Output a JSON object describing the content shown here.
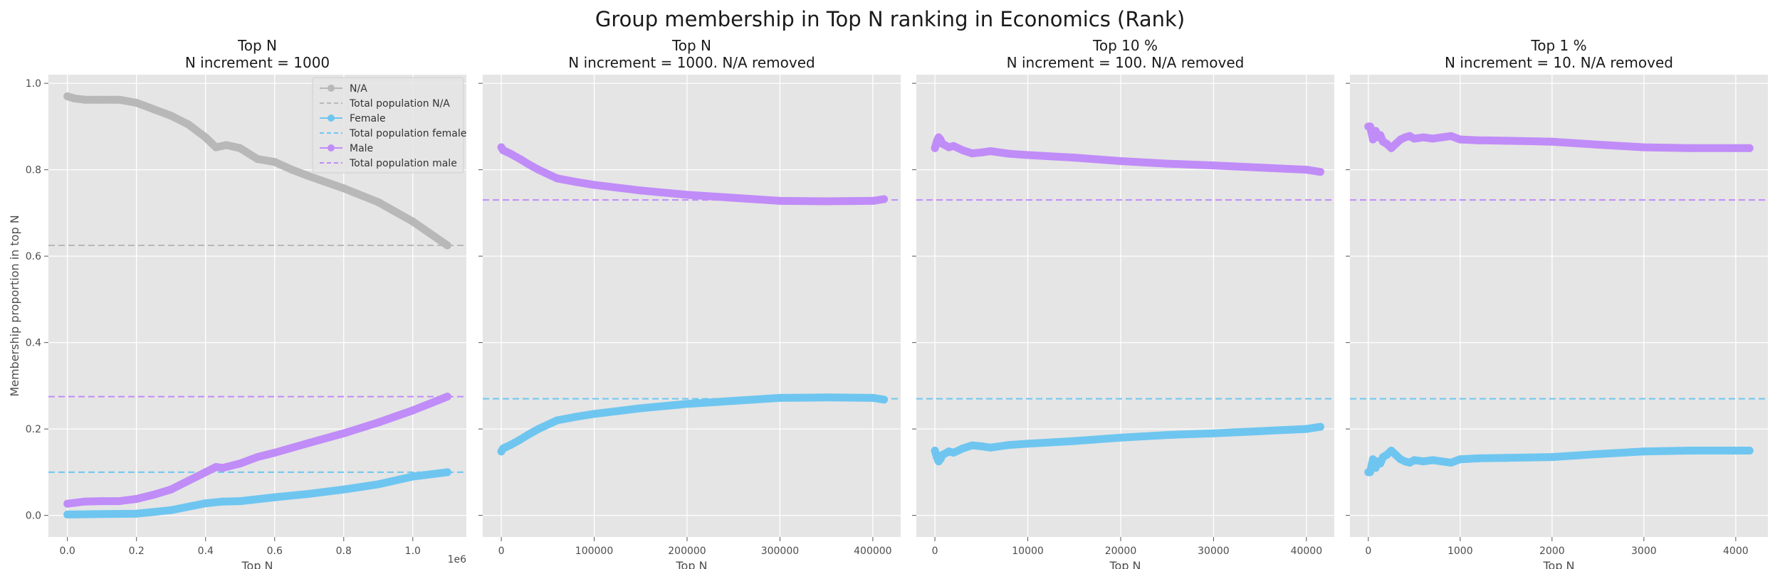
{
  "figure": {
    "title": "Group membership in Top N ranking in Economics (Rank)"
  },
  "colors": {
    "panel_bg": "#e5e5e5",
    "grid": "#ffffff",
    "na": "#b8b8b8",
    "female": "#6ec6f0",
    "male": "#c08cf8"
  },
  "chart_data": [
    {
      "type": "line",
      "title": "Top N",
      "subtitle": "N increment = 1000",
      "xlabel": "Top N",
      "ylabel": "Membership proportion in top N",
      "x_offset_label": "1e6",
      "xlim": [
        -0.055,
        1.155
      ],
      "ylim": [
        -0.05,
        1.02
      ],
      "xticks": [
        0,
        0.2,
        0.4,
        0.6,
        0.8,
        1.0
      ],
      "xtick_labels": [
        "0.0",
        "0.2",
        "0.4",
        "0.6",
        "0.8",
        "1.0"
      ],
      "yticks": [
        0,
        0.2,
        0.4,
        0.6,
        0.8,
        1.0
      ],
      "ytick_labels": [
        "0.0",
        "0.2",
        "0.4",
        "0.6",
        "0.8",
        "1.0"
      ],
      "grid": true,
      "legend": {
        "position": "top-right",
        "entries": [
          {
            "label": "N/A",
            "series": "na",
            "style": "marker-line"
          },
          {
            "label": "Total population N/A",
            "series": "na",
            "style": "dashed"
          },
          {
            "label": "Female",
            "series": "female",
            "style": "marker-line"
          },
          {
            "label": "Total population female",
            "series": "female",
            "style": "dashed"
          },
          {
            "label": "Male",
            "series": "male",
            "style": "marker-line"
          },
          {
            "label": "Total population male",
            "series": "male",
            "style": "dashed"
          }
        ]
      },
      "series": [
        {
          "name": "N/A",
          "group": "na",
          "x": [
            0.0,
            0.02,
            0.05,
            0.1,
            0.15,
            0.2,
            0.25,
            0.3,
            0.35,
            0.4,
            0.43,
            0.46,
            0.5,
            0.55,
            0.6,
            0.65,
            0.7,
            0.8,
            0.9,
            1.0,
            1.1
          ],
          "y": [
            0.97,
            0.965,
            0.962,
            0.962,
            0.962,
            0.955,
            0.94,
            0.925,
            0.905,
            0.875,
            0.852,
            0.857,
            0.85,
            0.825,
            0.818,
            0.8,
            0.785,
            0.757,
            0.725,
            0.68,
            0.625
          ]
        },
        {
          "name": "Female",
          "group": "female",
          "x": [
            0.0,
            0.1,
            0.2,
            0.3,
            0.4,
            0.45,
            0.5,
            0.6,
            0.7,
            0.8,
            0.9,
            1.0,
            1.1
          ],
          "y": [
            0.002,
            0.003,
            0.004,
            0.012,
            0.028,
            0.032,
            0.033,
            0.042,
            0.05,
            0.06,
            0.072,
            0.09,
            0.1
          ]
        },
        {
          "name": "Male",
          "group": "male",
          "x": [
            0.0,
            0.05,
            0.1,
            0.15,
            0.2,
            0.25,
            0.3,
            0.35,
            0.4,
            0.43,
            0.45,
            0.5,
            0.55,
            0.6,
            0.7,
            0.8,
            0.9,
            1.0,
            1.1
          ],
          "y": [
            0.027,
            0.032,
            0.033,
            0.033,
            0.038,
            0.048,
            0.06,
            0.08,
            0.1,
            0.112,
            0.11,
            0.12,
            0.135,
            0.145,
            0.168,
            0.19,
            0.215,
            0.243,
            0.275
          ]
        }
      ],
      "reference_lines": [
        {
          "name": "Total population N/A",
          "group": "na",
          "y": 0.625
        },
        {
          "name": "Total population female",
          "group": "female",
          "y": 0.1
        },
        {
          "name": "Total population male",
          "group": "male",
          "y": 0.275
        }
      ]
    },
    {
      "type": "line",
      "title": "Top N",
      "subtitle": "N increment = 1000. N/A removed",
      "xlabel": "Top N",
      "xlim": [
        -20000,
        430000
      ],
      "ylim": [
        -0.05,
        1.02
      ],
      "xticks": [
        0,
        100000,
        200000,
        300000,
        400000
      ],
      "xtick_labels": [
        "0",
        "100000",
        "200000",
        "300000",
        "400000"
      ],
      "yticks": [
        0,
        0.2,
        0.4,
        0.6,
        0.8,
        1.0
      ],
      "grid": true,
      "series": [
        {
          "name": "Female",
          "group": "female",
          "x": [
            0,
            2000,
            5000,
            10000,
            20000,
            30000,
            40000,
            60000,
            80000,
            100000,
            150000,
            200000,
            250000,
            300000,
            350000,
            400000,
            412000
          ],
          "y": [
            0.148,
            0.155,
            0.158,
            0.163,
            0.175,
            0.188,
            0.2,
            0.22,
            0.228,
            0.235,
            0.248,
            0.258,
            0.265,
            0.272,
            0.273,
            0.272,
            0.268
          ]
        },
        {
          "name": "Male",
          "group": "male",
          "x": [
            0,
            2000,
            5000,
            10000,
            20000,
            30000,
            40000,
            60000,
            80000,
            100000,
            150000,
            200000,
            250000,
            300000,
            350000,
            400000,
            412000
          ],
          "y": [
            0.852,
            0.845,
            0.842,
            0.837,
            0.825,
            0.812,
            0.8,
            0.78,
            0.772,
            0.765,
            0.752,
            0.742,
            0.735,
            0.728,
            0.727,
            0.728,
            0.732
          ]
        }
      ],
      "reference_lines": [
        {
          "name": "Total population female",
          "group": "female",
          "y": 0.27
        },
        {
          "name": "Total population male",
          "group": "male",
          "y": 0.73
        }
      ]
    },
    {
      "type": "line",
      "title": "Top 10 %",
      "subtitle": "N increment = 100. N/A removed",
      "xlabel": "Top N",
      "xlim": [
        -2000,
        43000
      ],
      "ylim": [
        -0.05,
        1.02
      ],
      "xticks": [
        0,
        10000,
        20000,
        30000,
        40000
      ],
      "xtick_labels": [
        "0",
        "10000",
        "20000",
        "30000",
        "40000"
      ],
      "yticks": [
        0,
        0.2,
        0.4,
        0.6,
        0.8,
        1.0
      ],
      "grid": true,
      "series": [
        {
          "name": "Female",
          "group": "female",
          "x": [
            0,
            200,
            400,
            600,
            800,
            1000,
            1500,
            2000,
            3000,
            4000,
            5000,
            6000,
            8000,
            10000,
            15000,
            20000,
            25000,
            30000,
            35000,
            40000,
            41500
          ],
          "y": [
            0.15,
            0.135,
            0.125,
            0.13,
            0.14,
            0.142,
            0.148,
            0.145,
            0.155,
            0.162,
            0.16,
            0.157,
            0.163,
            0.166,
            0.172,
            0.18,
            0.186,
            0.19,
            0.195,
            0.2,
            0.205
          ]
        },
        {
          "name": "Male",
          "group": "male",
          "x": [
            0,
            200,
            400,
            600,
            800,
            1000,
            1500,
            2000,
            3000,
            4000,
            5000,
            6000,
            8000,
            10000,
            15000,
            20000,
            25000,
            30000,
            35000,
            40000,
            41500
          ],
          "y": [
            0.85,
            0.865,
            0.875,
            0.87,
            0.86,
            0.858,
            0.852,
            0.855,
            0.845,
            0.838,
            0.84,
            0.843,
            0.837,
            0.834,
            0.828,
            0.82,
            0.814,
            0.81,
            0.805,
            0.8,
            0.795
          ]
        }
      ],
      "reference_lines": [
        {
          "name": "Total population female",
          "group": "female",
          "y": 0.27
        },
        {
          "name": "Total population male",
          "group": "male",
          "y": 0.73
        }
      ]
    },
    {
      "type": "line",
      "title": "Top 1 %",
      "subtitle": "N increment = 10. N/A removed",
      "xlabel": "Top N",
      "xlim": [
        -200,
        4350
      ],
      "ylim": [
        -0.05,
        1.02
      ],
      "xticks": [
        0,
        1000,
        2000,
        3000,
        4000
      ],
      "xtick_labels": [
        "0",
        "1000",
        "2000",
        "3000",
        "4000"
      ],
      "yticks": [
        0,
        0.2,
        0.4,
        0.6,
        0.8,
        1.0
      ],
      "grid": true,
      "series": [
        {
          "name": "Female",
          "group": "female",
          "x": [
            0,
            20,
            50,
            80,
            100,
            130,
            160,
            200,
            250,
            300,
            350,
            400,
            450,
            500,
            600,
            700,
            800,
            900,
            1000,
            1200,
            1500,
            2000,
            2500,
            3000,
            3500,
            4000,
            4150
          ],
          "y": [
            0.1,
            0.1,
            0.13,
            0.11,
            0.125,
            0.12,
            0.135,
            0.14,
            0.15,
            0.14,
            0.13,
            0.125,
            0.122,
            0.128,
            0.125,
            0.128,
            0.125,
            0.122,
            0.13,
            0.132,
            0.133,
            0.135,
            0.142,
            0.148,
            0.15,
            0.15,
            0.15
          ]
        },
        {
          "name": "Male",
          "group": "male",
          "x": [
            0,
            20,
            50,
            80,
            100,
            130,
            160,
            200,
            250,
            300,
            350,
            400,
            450,
            500,
            600,
            700,
            800,
            900,
            1000,
            1200,
            1500,
            2000,
            2500,
            3000,
            3500,
            4000,
            4150
          ],
          "y": [
            0.9,
            0.9,
            0.87,
            0.89,
            0.875,
            0.88,
            0.865,
            0.86,
            0.85,
            0.86,
            0.87,
            0.875,
            0.878,
            0.872,
            0.875,
            0.872,
            0.875,
            0.878,
            0.87,
            0.868,
            0.867,
            0.865,
            0.858,
            0.852,
            0.85,
            0.85,
            0.85
          ]
        }
      ],
      "reference_lines": [
        {
          "name": "Total population female",
          "group": "female",
          "y": 0.27
        },
        {
          "name": "Total population male",
          "group": "male",
          "y": 0.73
        }
      ]
    }
  ]
}
